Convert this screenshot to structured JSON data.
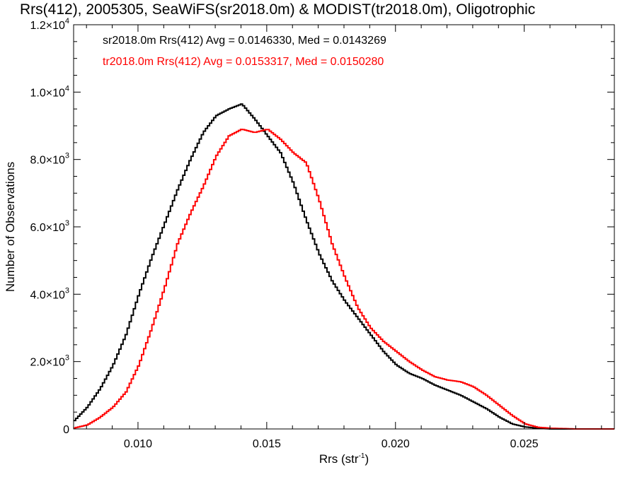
{
  "chart_data": {
    "type": "line",
    "title": "Rrs(412), 2005305, SeaWiFS(sr2018.0m) & MODIST(tr2018.0m), Oligotrophic",
    "xlabel": "Rrs (str",
    "xlabel_superscript": "-1",
    "xlabel_close": ")",
    "ylabel": "Number of Observations",
    "xlim": [
      0.0075,
      0.0285
    ],
    "ylim": [
      0,
      12000
    ],
    "step_histogram": true,
    "x_ticks": [
      {
        "value": 0.01,
        "label": "0.010"
      },
      {
        "value": 0.015,
        "label": "0.015"
      },
      {
        "value": 0.02,
        "label": "0.020"
      },
      {
        "value": 0.025,
        "label": "0.025"
      }
    ],
    "y_ticks": [
      {
        "value": 0,
        "base": "0",
        "exp": ""
      },
      {
        "value": 2000,
        "base": "2.0×10",
        "exp": "3"
      },
      {
        "value": 4000,
        "base": "4.0×10",
        "exp": "3"
      },
      {
        "value": 6000,
        "base": "6.0×10",
        "exp": "3"
      },
      {
        "value": 8000,
        "base": "8.0×10",
        "exp": "3"
      },
      {
        "value": 10000,
        "base": "1.0×10",
        "exp": "4"
      },
      {
        "value": 12000,
        "base": "1.2×10",
        "exp": "4"
      }
    ],
    "annotations": [
      {
        "text": "sr2018.0m Rrs(412) Avg = 0.0146330, Med = 0.0143269",
        "color": "#000000"
      },
      {
        "text": "tr2018.0m Rrs(412) Avg = 0.0153317, Med = 0.0150280",
        "color": "#ff0000"
      }
    ],
    "series": [
      {
        "key": "sr2018",
        "color": "#000000",
        "x": [
          0.0075,
          0.008,
          0.0085,
          0.009,
          0.0095,
          0.01,
          0.0105,
          0.011,
          0.0115,
          0.012,
          0.0125,
          0.013,
          0.0135,
          0.014,
          0.0145,
          0.015,
          0.0155,
          0.016,
          0.0165,
          0.017,
          0.0175,
          0.018,
          0.0185,
          0.019,
          0.0195,
          0.02,
          0.0205,
          0.021,
          0.0215,
          0.022,
          0.0225,
          0.023,
          0.0235,
          0.024,
          0.0245,
          0.025,
          0.0255,
          0.026,
          0.027,
          0.0285
        ],
        "y": [
          250,
          650,
          1200,
          1900,
          2800,
          4000,
          5100,
          6100,
          7100,
          8000,
          8800,
          9300,
          9500,
          9650,
          9200,
          8700,
          8200,
          7300,
          6200,
          5200,
          4400,
          3800,
          3300,
          2800,
          2300,
          1900,
          1650,
          1500,
          1300,
          1150,
          1000,
          800,
          600,
          350,
          150,
          60,
          20,
          0,
          0,
          0
        ]
      },
      {
        "key": "tr2018",
        "color": "#ff0000",
        "x": [
          0.0075,
          0.008,
          0.0085,
          0.009,
          0.0095,
          0.01,
          0.0105,
          0.011,
          0.0115,
          0.012,
          0.0125,
          0.013,
          0.0135,
          0.014,
          0.0145,
          0.015,
          0.0155,
          0.016,
          0.0165,
          0.017,
          0.0175,
          0.018,
          0.0185,
          0.019,
          0.0195,
          0.02,
          0.0205,
          0.021,
          0.0215,
          0.022,
          0.0225,
          0.023,
          0.0235,
          0.024,
          0.0245,
          0.025,
          0.0255,
          0.026,
          0.027,
          0.0285
        ],
        "y": [
          30,
          120,
          350,
          650,
          1100,
          1900,
          3000,
          4200,
          5500,
          6400,
          7200,
          8100,
          8700,
          8900,
          8800,
          8900,
          8600,
          8200,
          7900,
          6800,
          5500,
          4500,
          3600,
          3000,
          2600,
          2300,
          2000,
          1750,
          1550,
          1450,
          1400,
          1250,
          1000,
          700,
          400,
          150,
          50,
          20,
          0,
          0
        ]
      }
    ],
    "grid": false,
    "legend": "none"
  }
}
